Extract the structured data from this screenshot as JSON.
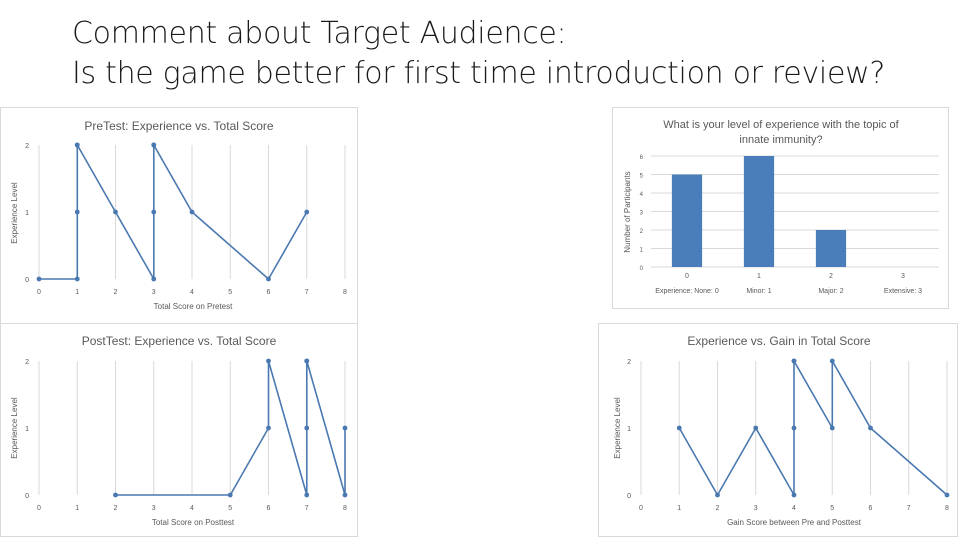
{
  "slide": {
    "title_line1": "Comment about Target Audience:",
    "title_line2": "Is the game better for first time introduction or review?"
  },
  "charts": {
    "c1": {
      "type": "line",
      "title": "PreTest: Experience vs. Total Score",
      "xlabel": "Total Score on Pretest",
      "ylabel": "Experience Level",
      "x_ticks": [
        "0",
        "1",
        "2",
        "3",
        "4",
        "5",
        "6",
        "7",
        "8"
      ],
      "y_ticks": [
        "0",
        "1",
        "2"
      ],
      "xlim": [
        0,
        8
      ],
      "ylim": [
        0,
        2
      ],
      "color": "#4a78b0",
      "points": [
        [
          0,
          0
        ],
        [
          1,
          0
        ],
        [
          1,
          2
        ],
        [
          1,
          1
        ],
        [
          1,
          2
        ],
        [
          2,
          1
        ],
        [
          3,
          0
        ],
        [
          3,
          2
        ],
        [
          3,
          1
        ],
        [
          3,
          2
        ],
        [
          4,
          1
        ],
        [
          6,
          0
        ],
        [
          7,
          1
        ]
      ]
    },
    "c2": {
      "type": "bar",
      "title_line1": "What is your level of experience with the topic of",
      "title_line2": "innate immunity?",
      "ylabel": "Number of Participants",
      "y_ticks": [
        "0",
        "1",
        "2",
        "3",
        "4",
        "5",
        "6"
      ],
      "ylim": [
        0,
        6
      ],
      "categories": [
        "0",
        "1",
        "2",
        "3"
      ],
      "category_labels": [
        "Experience: None: 0",
        "Minor: 1",
        "Major: 2",
        "Extensive: 3"
      ],
      "values": [
        5,
        6,
        2,
        0
      ],
      "color": "#4a7ebb"
    },
    "c3": {
      "type": "line",
      "title": "PostTest: Experience vs. Total Score",
      "xlabel": "Total Score on Posttest",
      "ylabel": "Experience Level",
      "x_ticks": [
        "0",
        "1",
        "2",
        "3",
        "4",
        "5",
        "6",
        "7",
        "8"
      ],
      "y_ticks": [
        "0",
        "1",
        "2"
      ],
      "xlim": [
        0,
        8
      ],
      "ylim": [
        0,
        2
      ],
      "color": "#4a78b0",
      "points": [
        [
          2,
          0
        ],
        [
          5,
          0
        ],
        [
          6,
          1
        ],
        [
          6,
          2
        ],
        [
          7,
          0
        ],
        [
          7,
          2
        ],
        [
          7,
          1
        ],
        [
          7,
          2
        ],
        [
          8,
          0
        ],
        [
          8,
          1
        ]
      ]
    },
    "c4": {
      "type": "line",
      "title": "Experience vs. Gain in Total Score",
      "xlabel": "Gain Score between Pre and Posttest",
      "ylabel": "Experience Level",
      "x_ticks": [
        "0",
        "1",
        "2",
        "3",
        "4",
        "5",
        "6",
        "7",
        "8"
      ],
      "y_ticks": [
        "0",
        "1",
        "2"
      ],
      "xlim": [
        0,
        8
      ],
      "ylim": [
        0,
        2
      ],
      "color": "#4a78b0",
      "points": [
        [
          1,
          1
        ],
        [
          2,
          0
        ],
        [
          3,
          1
        ],
        [
          4,
          0
        ],
        [
          4,
          2
        ],
        [
          4,
          1
        ],
        [
          4,
          2
        ],
        [
          5,
          1
        ],
        [
          5,
          2
        ],
        [
          6,
          1
        ],
        [
          8,
          0
        ]
      ]
    }
  }
}
